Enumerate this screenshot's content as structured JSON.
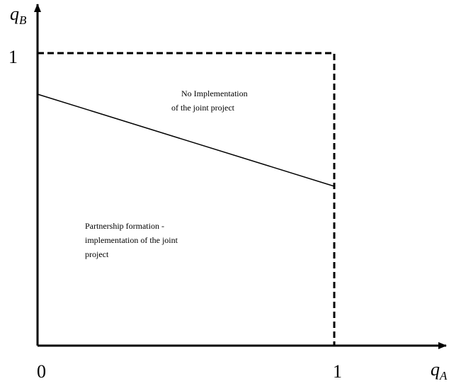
{
  "axes": {
    "x_label": {
      "main": "q",
      "sub": "A"
    },
    "y_label": {
      "main": "q",
      "sub": "B"
    },
    "x_ticks": [
      "0",
      "1"
    ],
    "y_ticks": [
      "1"
    ]
  },
  "regions": [
    {
      "lines": [
        "No Implementation",
        "of the joint project"
      ]
    },
    {
      "lines": [
        "Partnership formation -",
        "implementation of the joint",
        "project"
      ]
    }
  ]
}
